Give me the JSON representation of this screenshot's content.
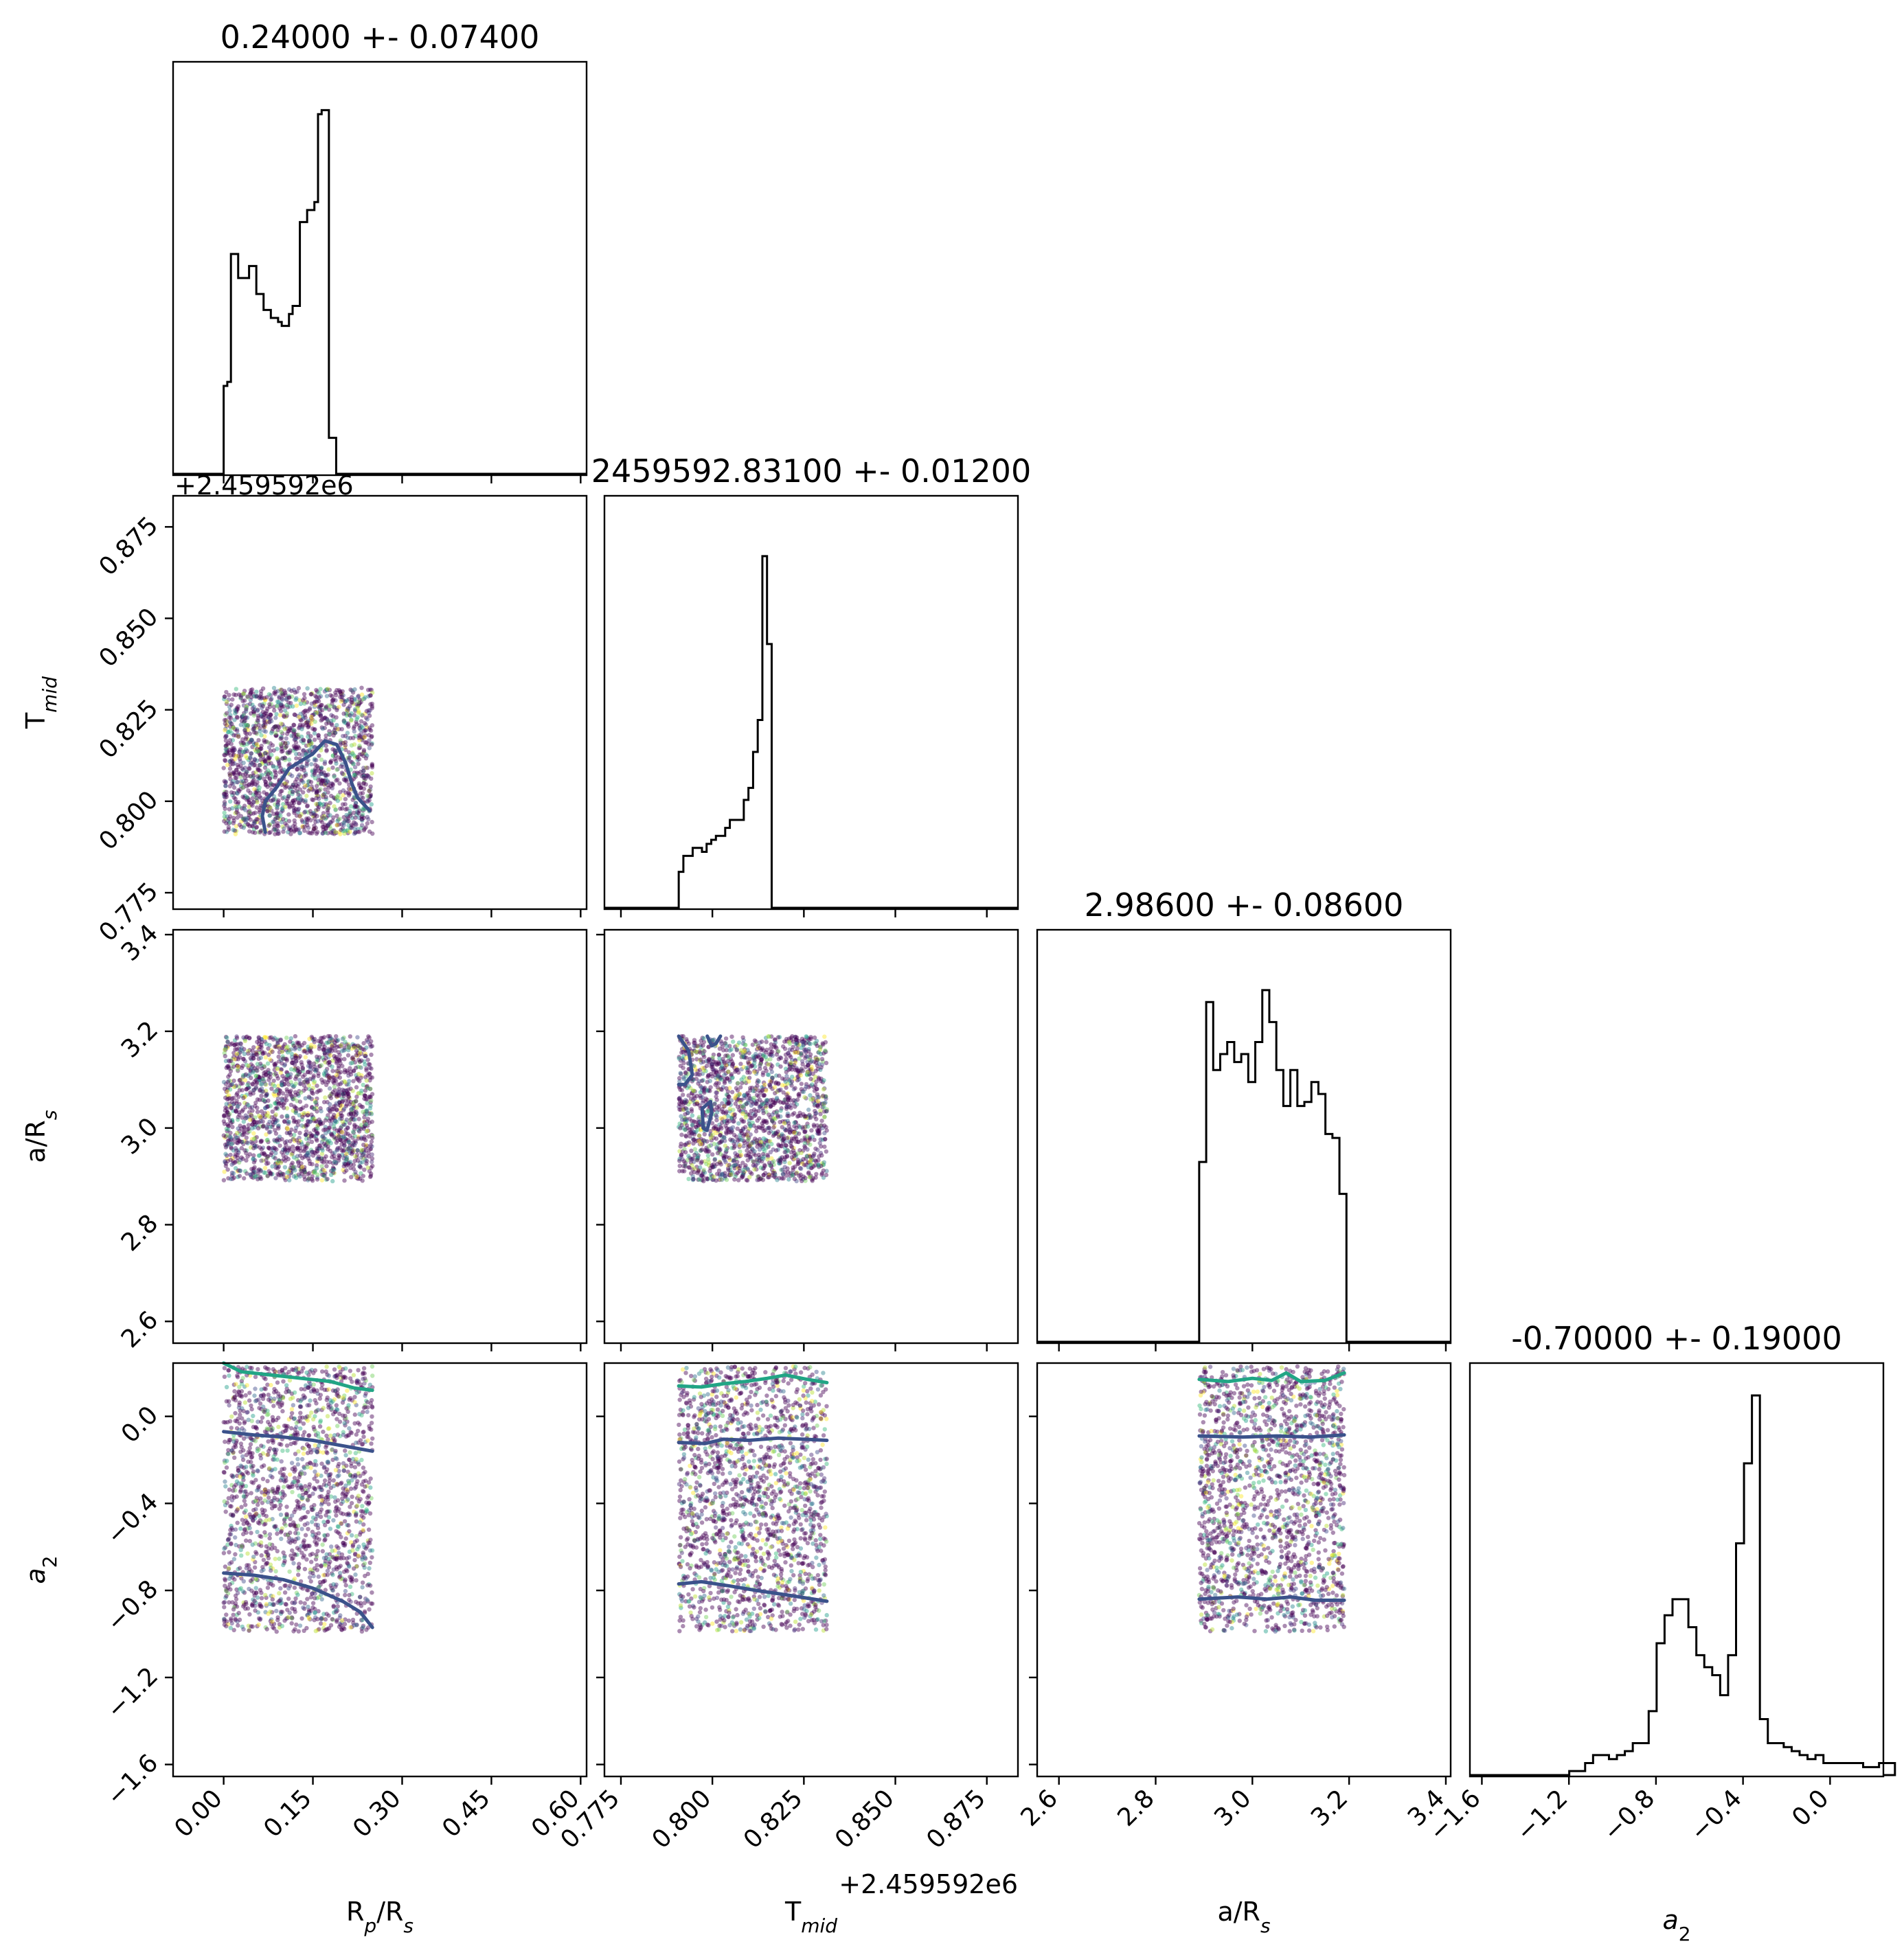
{
  "chart_data": {
    "type": "corner",
    "parameters": [
      {
        "key": "rp",
        "label_main": "R",
        "label_sub1": "p",
        "label_mid": "/R",
        "label_sub2": "s",
        "range": [
          -0.085,
          0.61
        ],
        "ticks": [
          "0.00",
          "0.15",
          "0.30",
          "0.45",
          "0.60"
        ],
        "tick_values": [
          0.0,
          0.15,
          0.3,
          0.45,
          0.6
        ]
      },
      {
        "key": "tmid",
        "label_main": "T",
        "label_sub1": "mid",
        "label_mid": "",
        "label_sub2": "",
        "range": [
          0.7705,
          0.8835
        ],
        "ticks": [
          "0.775",
          "0.800",
          "0.825",
          "0.850",
          "0.875"
        ],
        "tick_values": [
          0.775,
          0.8,
          0.825,
          0.85,
          0.875
        ],
        "offset_text": "+2.459592e6"
      },
      {
        "key": "ars",
        "label_main": "a/R",
        "label_sub1": "",
        "label_mid": "",
        "label_sub2": "s",
        "range": [
          2.555,
          3.41
        ],
        "ticks": [
          "2.6",
          "2.8",
          "3.0",
          "3.2",
          "3.4"
        ],
        "tick_values": [
          2.6,
          2.8,
          3.0,
          3.2,
          3.4
        ]
      },
      {
        "key": "a2",
        "label_main": "a",
        "label_sub1": "",
        "label_mid": "",
        "label_sub2": "2",
        "range": [
          -1.655,
          0.245
        ],
        "ticks": [
          "−1.6",
          "−1.2",
          "−0.8",
          "−0.4",
          "0.0"
        ],
        "tick_values": [
          -1.6,
          -1.2,
          -0.8,
          -0.4,
          0.0
        ]
      }
    ],
    "titles": [
      "0.24000 +- 0.07400",
      "2459592.83100 +- 0.01200",
      "2.98600 +- 0.08600",
      "-0.70000 +- 0.19000"
    ],
    "row_offset_text": "+2.459592e6",
    "histograms": [
      {
        "edges_start": 0.0,
        "bin_width": 0.0061,
        "counts": [
          0.22,
          0.23,
          0.55,
          0.55,
          0.49,
          0.49,
          0.49,
          0.52,
          0.52,
          0.45,
          0.45,
          0.41,
          0.41,
          0.39,
          0.39,
          0.38,
          0.37,
          0.37,
          0.4,
          0.42,
          0.42,
          0.63,
          0.63,
          0.66,
          0.66,
          0.68,
          0.9,
          0.91,
          0.91,
          0.09,
          0.09
        ]
      },
      {
        "edges_start": 0.7908,
        "bin_width": 0.00127,
        "counts": [
          0.09,
          0.13,
          0.13,
          0.15,
          0.15,
          0.14,
          0.16,
          0.17,
          0.18,
          0.18,
          0.2,
          0.22,
          0.22,
          0.22,
          0.27,
          0.3,
          0.39,
          0.47,
          0.88,
          0.66
        ]
      },
      {
        "edges_start": 2.89,
        "bin_width": 0.0145,
        "counts": [
          0.45,
          0.85,
          0.68,
          0.72,
          0.75,
          0.7,
          0.72,
          0.65,
          0.75,
          0.88,
          0.8,
          0.68,
          0.59,
          0.68,
          0.59,
          0.6,
          0.65,
          0.62,
          0.52,
          0.51,
          0.37
        ]
      },
      {
        "edges_start": -1.6,
        "bin_width": 0.0365,
        "counts": [
          0.0,
          0.0,
          0.0,
          0.0,
          0.0,
          0.0,
          0.0,
          0.0,
          0.0,
          0.0,
          0.0,
          0.01,
          0.01,
          0.03,
          0.05,
          0.05,
          0.04,
          0.05,
          0.06,
          0.08,
          0.08,
          0.16,
          0.33,
          0.4,
          0.44,
          0.44,
          0.37,
          0.3,
          0.27,
          0.25,
          0.2,
          0.3,
          0.58,
          0.78,
          0.95,
          0.14,
          0.08,
          0.08,
          0.07,
          0.06,
          0.05,
          0.04,
          0.05,
          0.03,
          0.03,
          0.03,
          0.03,
          0.03,
          0.02,
          0.02,
          0.03,
          0.03
        ]
      }
    ],
    "scatter_boxes": [
      {
        "row": 1,
        "col": 0,
        "x": [
          0.0,
          0.25
        ],
        "y": [
          0.791,
          0.831
        ]
      },
      {
        "row": 2,
        "col": 0,
        "x": [
          0.0,
          0.25
        ],
        "y": [
          2.89,
          3.19
        ]
      },
      {
        "row": 2,
        "col": 1,
        "x": [
          0.7908,
          0.8313
        ],
        "y": [
          2.89,
          3.19
        ]
      },
      {
        "row": 3,
        "col": 0,
        "x": [
          0.0,
          0.25
        ],
        "y": [
          -0.99,
          0.23
        ]
      },
      {
        "row": 3,
        "col": 1,
        "x": [
          0.7908,
          0.8313
        ],
        "y": [
          -0.99,
          0.23
        ]
      },
      {
        "row": 3,
        "col": 2,
        "x": [
          2.89,
          3.19
        ],
        "y": [
          -0.99,
          0.23
        ]
      }
    ],
    "contours": [
      {
        "row": 1,
        "col": 0,
        "color": "#3b528b",
        "points": [
          [
            0.07,
            0.7915
          ],
          [
            0.065,
            0.796
          ],
          [
            0.07,
            0.8
          ],
          [
            0.09,
            0.804
          ],
          [
            0.11,
            0.809
          ],
          [
            0.13,
            0.811
          ],
          [
            0.15,
            0.813
          ],
          [
            0.17,
            0.8165
          ],
          [
            0.19,
            0.8155
          ],
          [
            0.205,
            0.8105
          ],
          [
            0.215,
            0.805
          ],
          [
            0.225,
            0.801
          ],
          [
            0.245,
            0.7975
          ]
        ]
      },
      {
        "row": 2,
        "col": 1,
        "color": "#3b528b",
        "points": [
          [
            0.7908,
            3.19
          ],
          [
            0.7935,
            3.16
          ],
          [
            0.7945,
            3.11
          ],
          [
            0.7925,
            3.09
          ],
          [
            0.7908,
            3.09
          ]
        ]
      },
      {
        "row": 2,
        "col": 1,
        "color": "#3b528b",
        "points": [
          [
            0.7986,
            3.19
          ],
          [
            0.7998,
            3.17
          ],
          [
            0.801,
            3.175
          ],
          [
            0.8022,
            3.19
          ]
        ]
      },
      {
        "row": 2,
        "col": 1,
        "color": "#3b528b",
        "points": [
          [
            0.7975,
            3.0
          ],
          [
            0.7972,
            3.04
          ],
          [
            0.7995,
            3.055
          ],
          [
            0.7998,
            3.03
          ],
          [
            0.7985,
            2.995
          ],
          [
            0.7975,
            3.0
          ]
        ]
      },
      {
        "row": 3,
        "col": 0,
        "color": "#21a585",
        "points": [
          [
            0.0,
            0.245
          ],
          [
            0.03,
            0.205
          ],
          [
            0.08,
            0.19
          ],
          [
            0.13,
            0.175
          ],
          [
            0.18,
            0.16
          ],
          [
            0.22,
            0.13
          ],
          [
            0.25,
            0.12
          ]
        ]
      },
      {
        "row": 3,
        "col": 0,
        "color": "#3b528b",
        "points": [
          [
            0.0,
            -0.07
          ],
          [
            0.05,
            -0.085
          ],
          [
            0.1,
            -0.095
          ],
          [
            0.15,
            -0.11
          ],
          [
            0.2,
            -0.135
          ],
          [
            0.25,
            -0.16
          ]
        ]
      },
      {
        "row": 3,
        "col": 0,
        "color": "#3b528b",
        "points": [
          [
            0.0,
            -0.72
          ],
          [
            0.05,
            -0.73
          ],
          [
            0.1,
            -0.75
          ],
          [
            0.15,
            -0.79
          ],
          [
            0.2,
            -0.85
          ],
          [
            0.23,
            -0.9
          ],
          [
            0.25,
            -0.97
          ]
        ]
      },
      {
        "row": 3,
        "col": 1,
        "color": "#21a585",
        "points": [
          [
            0.7908,
            0.14
          ],
          [
            0.797,
            0.135
          ],
          [
            0.803,
            0.15
          ],
          [
            0.809,
            0.16
          ],
          [
            0.815,
            0.175
          ],
          [
            0.82,
            0.19
          ],
          [
            0.826,
            0.17
          ],
          [
            0.8313,
            0.155
          ]
        ]
      },
      {
        "row": 3,
        "col": 1,
        "color": "#3b528b",
        "points": [
          [
            0.7908,
            -0.12
          ],
          [
            0.798,
            -0.125
          ],
          [
            0.803,
            -0.105
          ],
          [
            0.81,
            -0.11
          ],
          [
            0.818,
            -0.1
          ],
          [
            0.825,
            -0.105
          ],
          [
            0.8313,
            -0.11
          ]
        ]
      },
      {
        "row": 3,
        "col": 1,
        "color": "#3b528b",
        "points": [
          [
            0.7908,
            -0.77
          ],
          [
            0.797,
            -0.76
          ],
          [
            0.805,
            -0.78
          ],
          [
            0.812,
            -0.8
          ],
          [
            0.82,
            -0.82
          ],
          [
            0.8313,
            -0.85
          ]
        ]
      },
      {
        "row": 3,
        "col": 2,
        "color": "#21a585",
        "points": [
          [
            2.89,
            0.17
          ],
          [
            2.95,
            0.16
          ],
          [
            3.0,
            0.175
          ],
          [
            3.04,
            0.165
          ],
          [
            3.07,
            0.2
          ],
          [
            3.1,
            0.16
          ],
          [
            3.15,
            0.165
          ],
          [
            3.19,
            0.2
          ]
        ]
      },
      {
        "row": 3,
        "col": 2,
        "color": "#3b528b",
        "points": [
          [
            2.89,
            -0.09
          ],
          [
            2.98,
            -0.095
          ],
          [
            3.05,
            -0.09
          ],
          [
            3.12,
            -0.095
          ],
          [
            3.19,
            -0.085
          ]
        ]
      },
      {
        "row": 3,
        "col": 2,
        "color": "#3b528b",
        "points": [
          [
            2.89,
            -0.84
          ],
          [
            2.97,
            -0.83
          ],
          [
            3.03,
            -0.84
          ],
          [
            3.08,
            -0.83
          ],
          [
            3.13,
            -0.845
          ],
          [
            3.19,
            -0.845
          ]
        ]
      }
    ],
    "colors": {
      "dark": "#440154",
      "mid": "#3b528b",
      "teal": "#21918c",
      "green": "#5ec962",
      "yellow": "#fde725",
      "contour_outer": "#21a585",
      "contour_inner": "#3b528b"
    }
  }
}
